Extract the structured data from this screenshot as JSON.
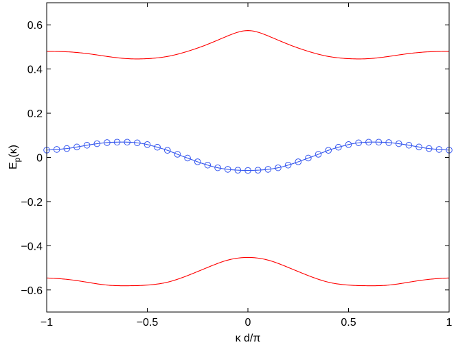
{
  "chart_data": {
    "type": "line",
    "xlabel": "κ d/π",
    "ylabel_main": "E",
    "ylabel_sub": "p",
    "ylabel_tail": "(κ)",
    "xlim": [
      -1,
      1
    ],
    "ylim": [
      -0.7,
      0.7
    ],
    "xticks": [
      -1,
      -0.5,
      0,
      0.5,
      1
    ],
    "xtick_labels": [
      "−1",
      "−0.5",
      "0",
      "0.5",
      "1"
    ],
    "yticks": [
      -0.6,
      -0.4,
      -0.2,
      0,
      0.2,
      0.4,
      0.6
    ],
    "ytick_labels": [
      "−0.6",
      "−0.4",
      "−0.2",
      "0",
      "0.2",
      "0.4",
      "0.6"
    ],
    "grid": false,
    "colors": {
      "upper": "#ff0000",
      "lower": "#ff0000",
      "middle": "#3355ee"
    },
    "series": [
      {
        "x": [
          -1,
          -0.9,
          -0.8,
          -0.7,
          -0.6,
          -0.5,
          -0.4,
          -0.3,
          -0.2,
          -0.1,
          0,
          0.1,
          0.2,
          0.3,
          0.4,
          0.5,
          0.6,
          0.7,
          0.8,
          0.9,
          1
        ],
        "values": [
          0.48,
          0.478,
          0.47,
          0.457,
          0.447,
          0.447,
          0.457,
          0.48,
          0.512,
          0.55,
          0.574,
          0.55,
          0.512,
          0.48,
          0.457,
          0.447,
          0.447,
          0.457,
          0.47,
          0.478,
          0.48
        ]
      },
      {
        "x": [
          -1,
          -0.9,
          -0.8,
          -0.7,
          -0.6,
          -0.5,
          -0.4,
          -0.3,
          -0.2,
          -0.1,
          0,
          0.1,
          0.2,
          0.3,
          0.4,
          0.5,
          0.6,
          0.7,
          0.8,
          0.9,
          1
        ],
        "values": [
          -0.546,
          -0.552,
          -0.565,
          -0.578,
          -0.581,
          -0.578,
          -0.565,
          -0.535,
          -0.498,
          -0.465,
          -0.453,
          -0.465,
          -0.498,
          -0.535,
          -0.565,
          -0.578,
          -0.581,
          -0.578,
          -0.565,
          -0.552,
          -0.546
        ]
      },
      {
        "markers": "circle",
        "x": [
          -1,
          -0.95,
          -0.9,
          -0.85,
          -0.8,
          -0.75,
          -0.7,
          -0.65,
          -0.6,
          -0.55,
          -0.5,
          -0.45,
          -0.4,
          -0.35,
          -0.3,
          -0.25,
          -0.2,
          -0.15,
          -0.1,
          -0.05,
          0,
          0.05,
          0.1,
          0.15,
          0.2,
          0.25,
          0.3,
          0.35,
          0.4,
          0.45,
          0.5,
          0.55,
          0.6,
          0.65,
          0.7,
          0.75,
          0.8,
          0.85,
          0.9,
          0.95,
          1
        ],
        "values": [
          0.033,
          0.036,
          0.04,
          0.047,
          0.055,
          0.062,
          0.067,
          0.069,
          0.069,
          0.066,
          0.058,
          0.046,
          0.032,
          0.014,
          -0.003,
          -0.02,
          -0.035,
          -0.047,
          -0.054,
          -0.058,
          -0.059,
          -0.058,
          -0.054,
          -0.047,
          -0.035,
          -0.02,
          -0.003,
          0.014,
          0.032,
          0.046,
          0.058,
          0.066,
          0.069,
          0.069,
          0.067,
          0.062,
          0.055,
          0.047,
          0.04,
          0.036,
          0.033
        ]
      }
    ]
  }
}
